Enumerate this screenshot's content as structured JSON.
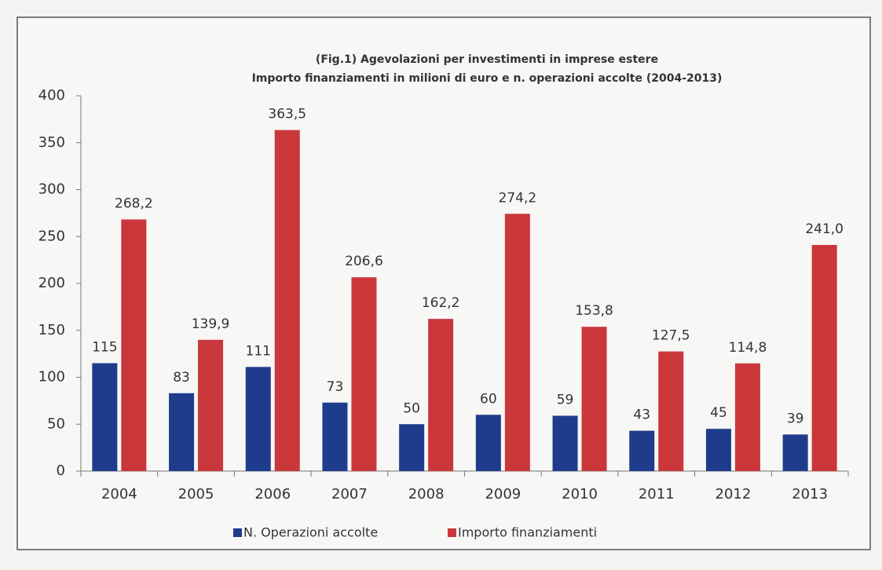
{
  "chart_data": {
    "type": "bar",
    "title": "(Fig.1) Agevolazioni per investimenti in imprese estere",
    "subtitle": "Importo finanziamenti in milioni di euro e n. operazioni accolte (2004-2013)",
    "categories": [
      "2004",
      "2005",
      "2006",
      "2007",
      "2008",
      "2009",
      "2010",
      "2011",
      "2012",
      "2013"
    ],
    "series": [
      {
        "name": "N. Operazioni accolte",
        "color": "#1f3c8c",
        "values": [
          115,
          83,
          111,
          73,
          50,
          60,
          59,
          43,
          45,
          39
        ]
      },
      {
        "name": "Importo finanziamenti",
        "color": "#c9373b",
        "values": [
          268.2,
          139.9,
          363.5,
          206.6,
          162.2,
          274.2,
          153.8,
          127.5,
          114.8,
          241.0
        ],
        "value_labels": [
          "268,2",
          "139,9",
          "363,5",
          "206,6",
          "162,2",
          "274,2",
          "153,8",
          "127,5",
          "114,8",
          "241,0"
        ]
      }
    ],
    "ylim": [
      0,
      400
    ],
    "yticks": [
      0,
      50,
      100,
      150,
      200,
      250,
      300,
      350,
      400
    ],
    "grid": false,
    "legend": "bottom"
  }
}
